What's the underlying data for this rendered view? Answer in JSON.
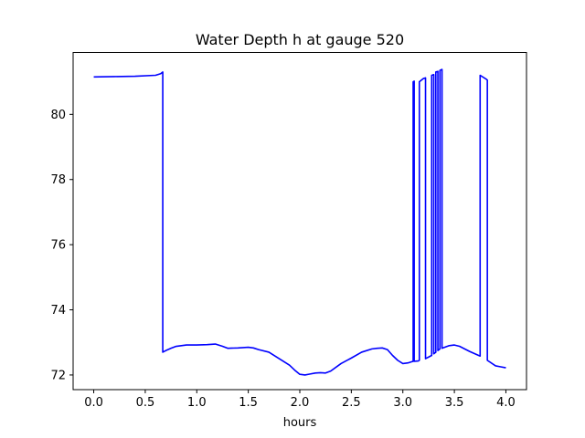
{
  "chart_data": {
    "type": "line",
    "title": "Water Depth h at gauge 520",
    "xlabel": "hours",
    "ylabel": "",
    "xlim": [
      -0.2,
      4.2
    ],
    "ylim": [
      71.55,
      81.9
    ],
    "xticks": [
      0.0,
      0.5,
      1.0,
      1.5,
      2.0,
      2.5,
      3.0,
      3.5,
      4.0
    ],
    "xtick_labels": [
      "0.0",
      "0.5",
      "1.0",
      "1.5",
      "2.0",
      "2.5",
      "3.0",
      "3.5",
      "4.0"
    ],
    "yticks": [
      72,
      74,
      76,
      78,
      80
    ],
    "ytick_labels": [
      "72",
      "74",
      "76",
      "78",
      "80"
    ],
    "grid": false,
    "legend": "none",
    "series": [
      {
        "color": "#0000ff",
        "x": [
          0.0,
          0.2,
          0.4,
          0.6,
          0.65,
          0.67,
          0.67,
          0.7,
          0.75,
          0.8,
          0.9,
          1.0,
          1.1,
          1.18,
          1.25,
          1.3,
          1.4,
          1.5,
          1.55,
          1.6,
          1.7,
          1.8,
          1.9,
          1.95,
          2.0,
          2.05,
          2.1,
          2.15,
          2.2,
          2.25,
          2.3,
          2.4,
          2.5,
          2.6,
          2.7,
          2.75,
          2.8,
          2.85,
          2.9,
          2.95,
          3.0,
          3.05,
          3.08,
          3.1,
          3.1,
          3.11,
          3.11,
          3.15,
          3.16,
          3.16,
          3.2,
          3.22,
          3.22,
          3.28,
          3.28,
          3.3,
          3.3,
          3.32,
          3.32,
          3.34,
          3.34,
          3.36,
          3.36,
          3.38,
          3.38,
          3.45,
          3.5,
          3.55,
          3.6,
          3.65,
          3.7,
          3.75,
          3.75,
          3.81,
          3.82,
          3.82,
          3.9,
          3.95,
          4.0
        ],
        "y": [
          81.15,
          81.16,
          81.17,
          81.2,
          81.25,
          81.3,
          72.7,
          72.75,
          72.82,
          72.88,
          72.92,
          72.92,
          72.93,
          72.95,
          72.88,
          72.82,
          72.83,
          72.85,
          72.83,
          72.78,
          72.7,
          72.5,
          72.3,
          72.15,
          72.02,
          72.0,
          72.03,
          72.06,
          72.07,
          72.06,
          72.12,
          72.35,
          72.52,
          72.7,
          72.8,
          72.82,
          72.83,
          72.78,
          72.6,
          72.45,
          72.35,
          72.37,
          72.4,
          72.42,
          81.0,
          81.02,
          72.42,
          72.43,
          72.45,
          81.0,
          81.1,
          81.12,
          72.5,
          72.6,
          81.2,
          81.22,
          72.65,
          72.7,
          81.3,
          81.32,
          72.75,
          72.8,
          81.35,
          81.38,
          72.82,
          72.9,
          72.92,
          72.88,
          72.8,
          72.72,
          72.65,
          72.58,
          81.2,
          81.08,
          81.05,
          72.45,
          72.28,
          72.25,
          72.22
        ]
      }
    ]
  }
}
